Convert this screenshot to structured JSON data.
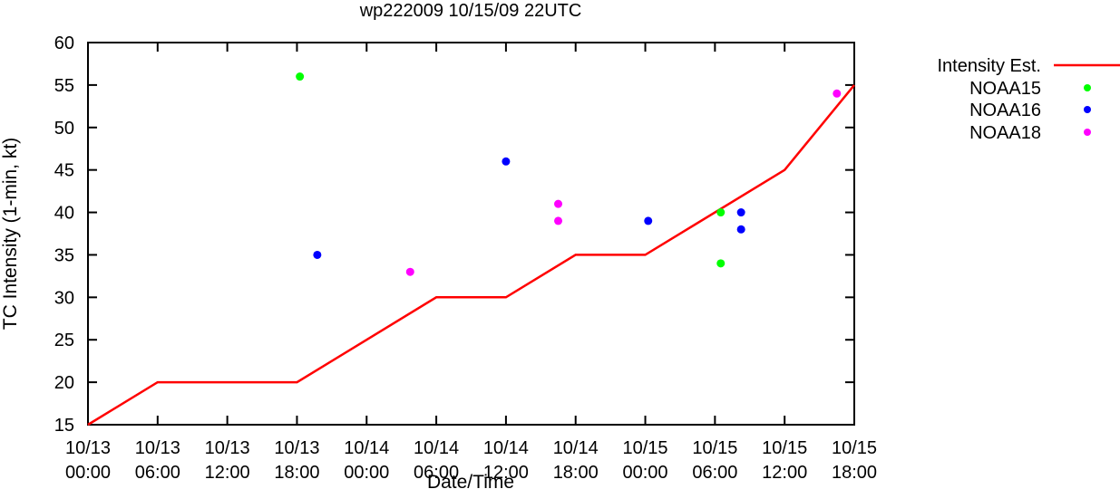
{
  "chart_data": {
    "type": "line",
    "title": "wp222009 10/15/09 22UTC",
    "xlabel": "Date/Time",
    "ylabel": "TC Intensity (1-min, kt)",
    "ylim": [
      15,
      60
    ],
    "yticks": [
      15,
      20,
      25,
      30,
      35,
      40,
      45,
      50,
      55,
      60
    ],
    "xlim": [
      "10/13 00:00",
      "10/15 18:00"
    ],
    "xticks": [
      {
        "date": "10/13",
        "time": "00:00"
      },
      {
        "date": "10/13",
        "time": "06:00"
      },
      {
        "date": "10/13",
        "time": "12:00"
      },
      {
        "date": "10/13",
        "time": "18:00"
      },
      {
        "date": "10/14",
        "time": "00:00"
      },
      {
        "date": "10/14",
        "time": "06:00"
      },
      {
        "date": "10/14",
        "time": "12:00"
      },
      {
        "date": "10/14",
        "time": "18:00"
      },
      {
        "date": "10/15",
        "time": "00:00"
      },
      {
        "date": "10/15",
        "time": "06:00"
      },
      {
        "date": "10/15",
        "time": "12:00"
      },
      {
        "date": "10/15",
        "time": "18:00"
      }
    ],
    "grid": false,
    "legend_position": "outside-right",
    "series": [
      {
        "name": "Intensity Est.",
        "kind": "line",
        "color": "#ff0000",
        "points": [
          {
            "x": "10/13 00:00",
            "y": 15
          },
          {
            "x": "10/13 06:00",
            "y": 20
          },
          {
            "x": "10/13 18:00",
            "y": 20
          },
          {
            "x": "10/14 06:00",
            "y": 30
          },
          {
            "x": "10/14 12:00",
            "y": 30
          },
          {
            "x": "10/14 18:00",
            "y": 35
          },
          {
            "x": "10/15 00:00",
            "y": 35
          },
          {
            "x": "10/15 12:00",
            "y": 45
          },
          {
            "x": "10/15 18:00",
            "y": 55
          }
        ]
      },
      {
        "name": "NOAA15",
        "kind": "points",
        "color": "#00ff00",
        "points": [
          {
            "x": "10/13 18:15",
            "y": 56
          },
          {
            "x": "10/15 06:30",
            "y": 40
          },
          {
            "x": "10/15 06:30",
            "y": 34
          }
        ]
      },
      {
        "name": "NOAA16",
        "kind": "points",
        "color": "#0000ff",
        "points": [
          {
            "x": "10/13 19:45",
            "y": 35
          },
          {
            "x": "10/14 12:00",
            "y": 46
          },
          {
            "x": "10/15 00:15",
            "y": 39
          },
          {
            "x": "10/15 08:15",
            "y": 40
          },
          {
            "x": "10/15 08:15",
            "y": 38
          }
        ]
      },
      {
        "name": "NOAA18",
        "kind": "points",
        "color": "#ff00ff",
        "points": [
          {
            "x": "10/14 03:45",
            "y": 33
          },
          {
            "x": "10/14 16:30",
            "y": 41
          },
          {
            "x": "10/14 16:30",
            "y": 39
          },
          {
            "x": "10/15 16:30",
            "y": 54
          }
        ]
      }
    ]
  }
}
